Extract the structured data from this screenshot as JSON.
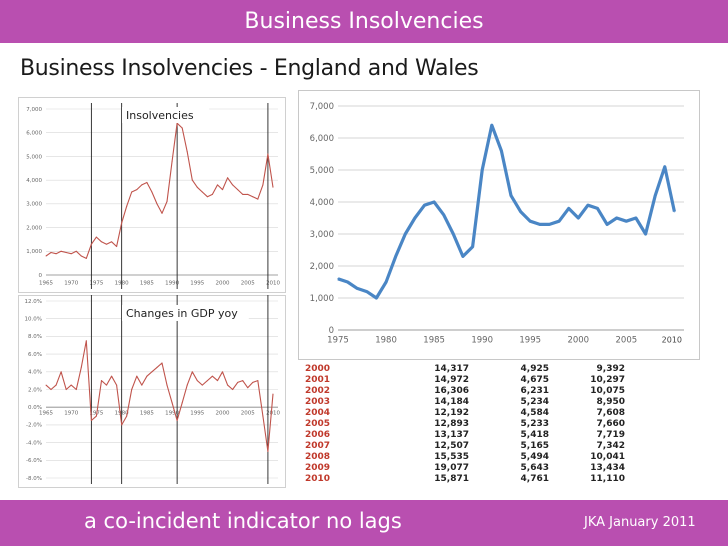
{
  "header": {
    "title": "Business Insolvencies"
  },
  "subtitle": "Business Insolvencies - England and Wales",
  "footer": {
    "left": "a co-incident indicator no lags",
    "right": "JKA January 2011"
  },
  "colors": {
    "bar": "#b94fb0",
    "insolvency_red": "#c0544c",
    "blue_line": "#4a86c5",
    "year_red": "#c0392b"
  },
  "chart_data": [
    {
      "type": "line",
      "title": "Insolvencies",
      "x_ticks": [
        "1965",
        "1970",
        "1975",
        "1980",
        "1985",
        "1990",
        "1995",
        "2000",
        "2005",
        "2010"
      ],
      "y_ticks": [
        "0",
        "1,000",
        "2,000",
        "3,000",
        "4,000",
        "5,000",
        "6,000",
        "7,000"
      ],
      "ylim": [
        0,
        7000
      ],
      "xlim": [
        1965,
        2011
      ],
      "markers": [
        1974,
        1980,
        1991,
        2009
      ],
      "x": [
        1965,
        1966,
        1967,
        1968,
        1969,
        1970,
        1971,
        1972,
        1973,
        1974,
        1975,
        1976,
        1977,
        1978,
        1979,
        1980,
        1981,
        1982,
        1983,
        1984,
        1985,
        1986,
        1987,
        1988,
        1989,
        1990,
        1991,
        1992,
        1993,
        1994,
        1995,
        1996,
        1997,
        1998,
        1999,
        2000,
        2001,
        2002,
        2003,
        2004,
        2005,
        2006,
        2007,
        2008,
        2009,
        2010
      ],
      "y": [
        800,
        950,
        900,
        1000,
        950,
        900,
        1000,
        800,
        700,
        1300,
        1600,
        1400,
        1300,
        1400,
        1200,
        2200,
        2900,
        3500,
        3600,
        3800,
        3900,
        3500,
        3000,
        2600,
        3100,
        4800,
        6400,
        6200,
        5200,
        4000,
        3700,
        3500,
        3300,
        3400,
        3800,
        3600,
        4100,
        3800,
        3600,
        3400,
        3400,
        3300,
        3200,
        3800,
        5100,
        3700
      ]
    },
    {
      "type": "line",
      "title": "Changes in GDP yoy",
      "x_ticks": [
        "1965",
        "1970",
        "1975",
        "1980",
        "1985",
        "1990",
        "1995",
        "2000",
        "2005",
        "2010"
      ],
      "y_ticks": [
        "12.0%",
        "10.0%",
        "8.0%",
        "6.0%",
        "4.0%",
        "2.0%",
        "0.0%",
        "-2.0%",
        "-4.0%",
        "-6.0%",
        "-8.0%"
      ],
      "ylim": [
        -8,
        12
      ],
      "xlim": [
        1965,
        2011
      ],
      "markers": [
        1974,
        1980,
        1991,
        2009
      ],
      "x": [
        1965,
        1966,
        1967,
        1968,
        1969,
        1970,
        1971,
        1972,
        1973,
        1974,
        1975,
        1976,
        1977,
        1978,
        1979,
        1980,
        1981,
        1982,
        1983,
        1984,
        1985,
        1986,
        1987,
        1988,
        1989,
        1990,
        1991,
        1992,
        1993,
        1994,
        1995,
        1996,
        1997,
        1998,
        1999,
        2000,
        2001,
        2002,
        2003,
        2004,
        2005,
        2006,
        2007,
        2008,
        2009,
        2010
      ],
      "y": [
        2.5,
        2.0,
        2.5,
        4.0,
        2.0,
        2.5,
        2.0,
        4.5,
        7.5,
        -1.5,
        -1.0,
        3.0,
        2.5,
        3.5,
        2.5,
        -2.0,
        -1.0,
        2.0,
        3.5,
        2.5,
        3.5,
        4.0,
        4.5,
        5.0,
        2.5,
        0.5,
        -1.5,
        0.5,
        2.5,
        4.0,
        3.0,
        2.5,
        3.0,
        3.5,
        3.0,
        4.0,
        2.5,
        2.0,
        2.8,
        3.0,
        2.2,
        2.8,
        3.0,
        -1.0,
        -5.0,
        1.5
      ]
    },
    {
      "type": "line",
      "x_ticks": [
        "1975",
        "1980",
        "1985",
        "1990",
        "1995",
        "2000",
        "2005"
      ],
      "y_ticks": [
        "0",
        "1,000",
        "2,000",
        "3,000",
        "4,000",
        "5,000",
        "6,000",
        "7,000"
      ],
      "ylim": [
        0,
        7000
      ],
      "xlim": [
        1975,
        2011
      ],
      "annotation": "2010",
      "x": [
        1975,
        1976,
        1977,
        1978,
        1979,
        1980,
        1981,
        1982,
        1983,
        1984,
        1985,
        1986,
        1987,
        1988,
        1989,
        1990,
        1991,
        1992,
        1993,
        1994,
        1995,
        1996,
        1997,
        1998,
        1999,
        2000,
        2001,
        2002,
        2003,
        2004,
        2005,
        2006,
        2007,
        2008,
        2009,
        2010
      ],
      "y": [
        1600,
        1500,
        1300,
        1200,
        1000,
        1500,
        2300,
        3000,
        3500,
        3900,
        4000,
        3600,
        3000,
        2300,
        2600,
        5000,
        6400,
        5600,
        4200,
        3700,
        3400,
        3300,
        3300,
        3400,
        3800,
        3500,
        3900,
        3800,
        3300,
        3500,
        3400,
        3500,
        3000,
        4200,
        5100,
        3700
      ]
    },
    {
      "type": "table",
      "rows": [
        [
          "2000",
          "14,317",
          "4,925",
          "9,392"
        ],
        [
          "2001",
          "14,972",
          "4,675",
          "10,297"
        ],
        [
          "2002",
          "16,306",
          "6,231",
          "10,075"
        ],
        [
          "2003",
          "14,184",
          "5,234",
          "8,950"
        ],
        [
          "2004",
          "12,192",
          "4,584",
          "7,608"
        ],
        [
          "2005",
          "12,893",
          "5,233",
          "7,660"
        ],
        [
          "2006",
          "13,137",
          "5,418",
          "7,719"
        ],
        [
          "2007",
          "12,507",
          "5,165",
          "7,342"
        ],
        [
          "2008",
          "15,535",
          "5,494",
          "10,041"
        ],
        [
          "2009",
          "19,077",
          "5,643",
          "13,434"
        ],
        [
          "2010",
          "15,871",
          "4,761",
          "11,110"
        ]
      ]
    }
  ]
}
